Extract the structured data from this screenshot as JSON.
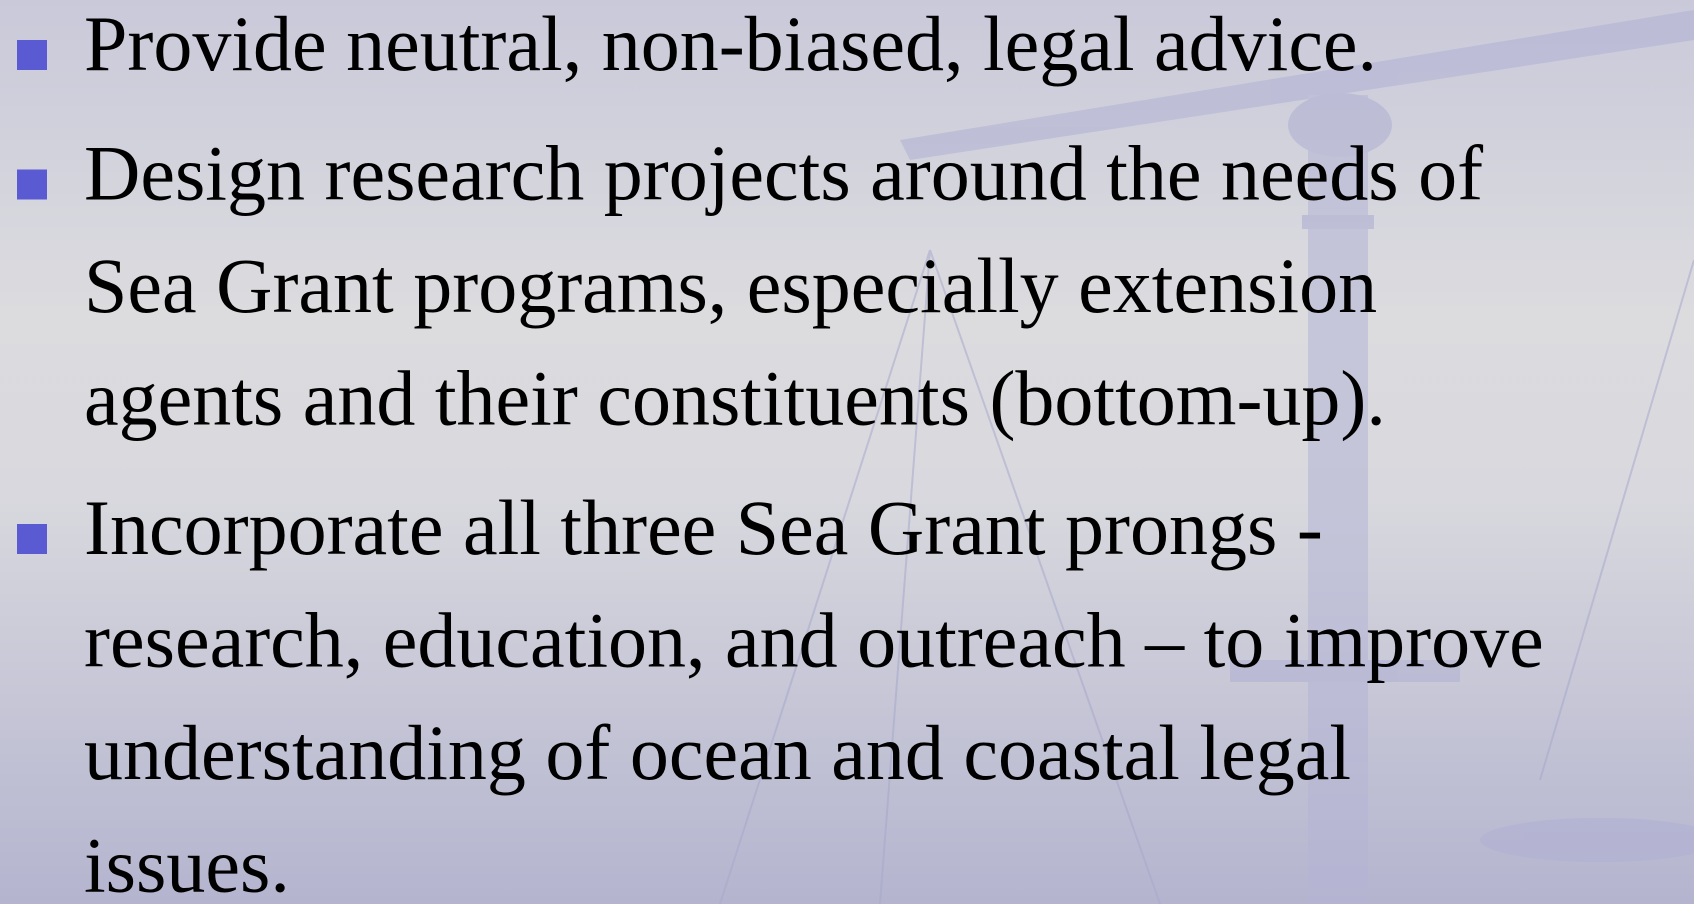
{
  "bullets": [
    {
      "lines": [
        "Provide neutral, non-biased, legal advice."
      ]
    },
    {
      "lines": [
        "Design research projects around the needs of",
        "Sea Grant programs, especially extension",
        "agents and their constituents (bottom-up)."
      ]
    },
    {
      "lines": [
        "Incorporate all three Sea Grant prongs -",
        "research, education, and outreach – to improve",
        "understanding of ocean and coastal legal",
        "issues."
      ]
    }
  ]
}
